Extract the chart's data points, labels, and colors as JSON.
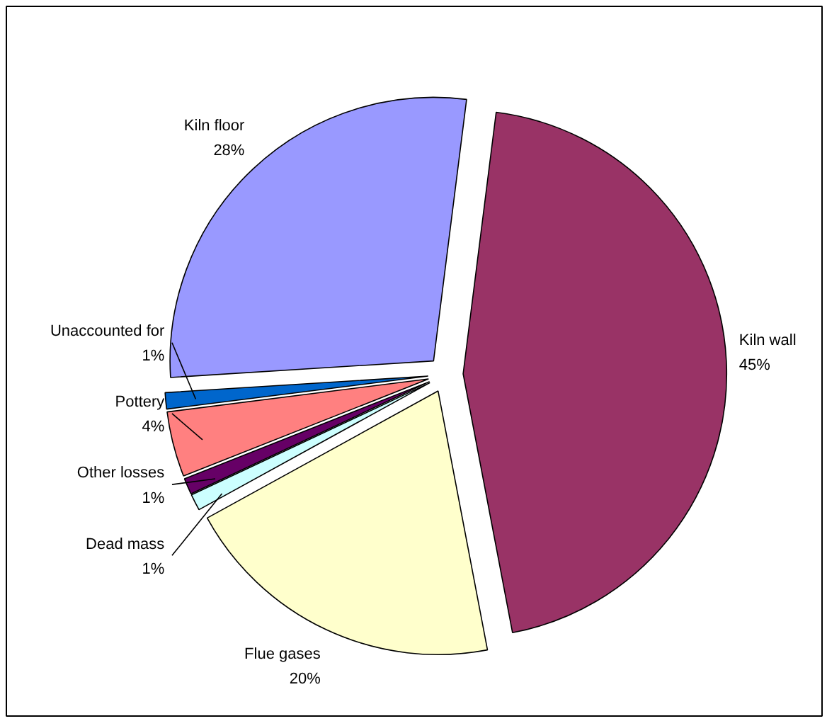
{
  "chart_data": {
    "type": "pie",
    "categories": [
      "Kiln wall",
      "Flue gases",
      "Dead mass",
      "Other losses",
      "Pottery",
      "Unaccounted for",
      "Kiln floor"
    ],
    "values": [
      45,
      20,
      1,
      1,
      4,
      1,
      28
    ],
    "value_labels": [
      "45%",
      "20%",
      "1%",
      "1%",
      "4%",
      "1%",
      "28%"
    ],
    "colors": [
      "#993366",
      "#ffffcc",
      "#ccffff",
      "#660066",
      "#ff8080",
      "#0066cc",
      "#9999ff"
    ]
  }
}
